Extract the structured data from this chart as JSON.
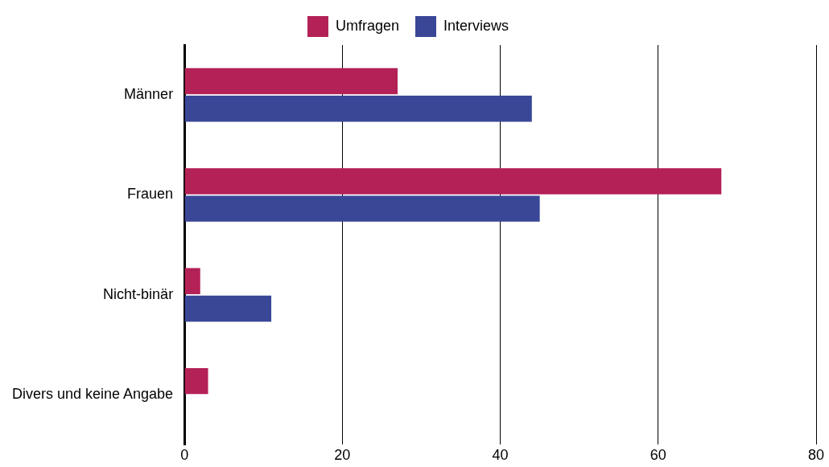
{
  "chart_data": {
    "type": "bar",
    "orientation": "horizontal",
    "categories": [
      "Männer",
      "Frauen",
      "Nicht-binär",
      "Divers und keine Angabe"
    ],
    "series": [
      {
        "name": "Umfragen",
        "color": "#b32157",
        "values": [
          27,
          68,
          2,
          3
        ]
      },
      {
        "name": "Interviews",
        "color": "#3a4797",
        "values": [
          44,
          45,
          11,
          null
        ]
      }
    ],
    "xlim": [
      0,
      80
    ],
    "xticks": [
      0,
      20,
      40,
      60,
      80
    ],
    "grid": "x",
    "legend": "top"
  }
}
